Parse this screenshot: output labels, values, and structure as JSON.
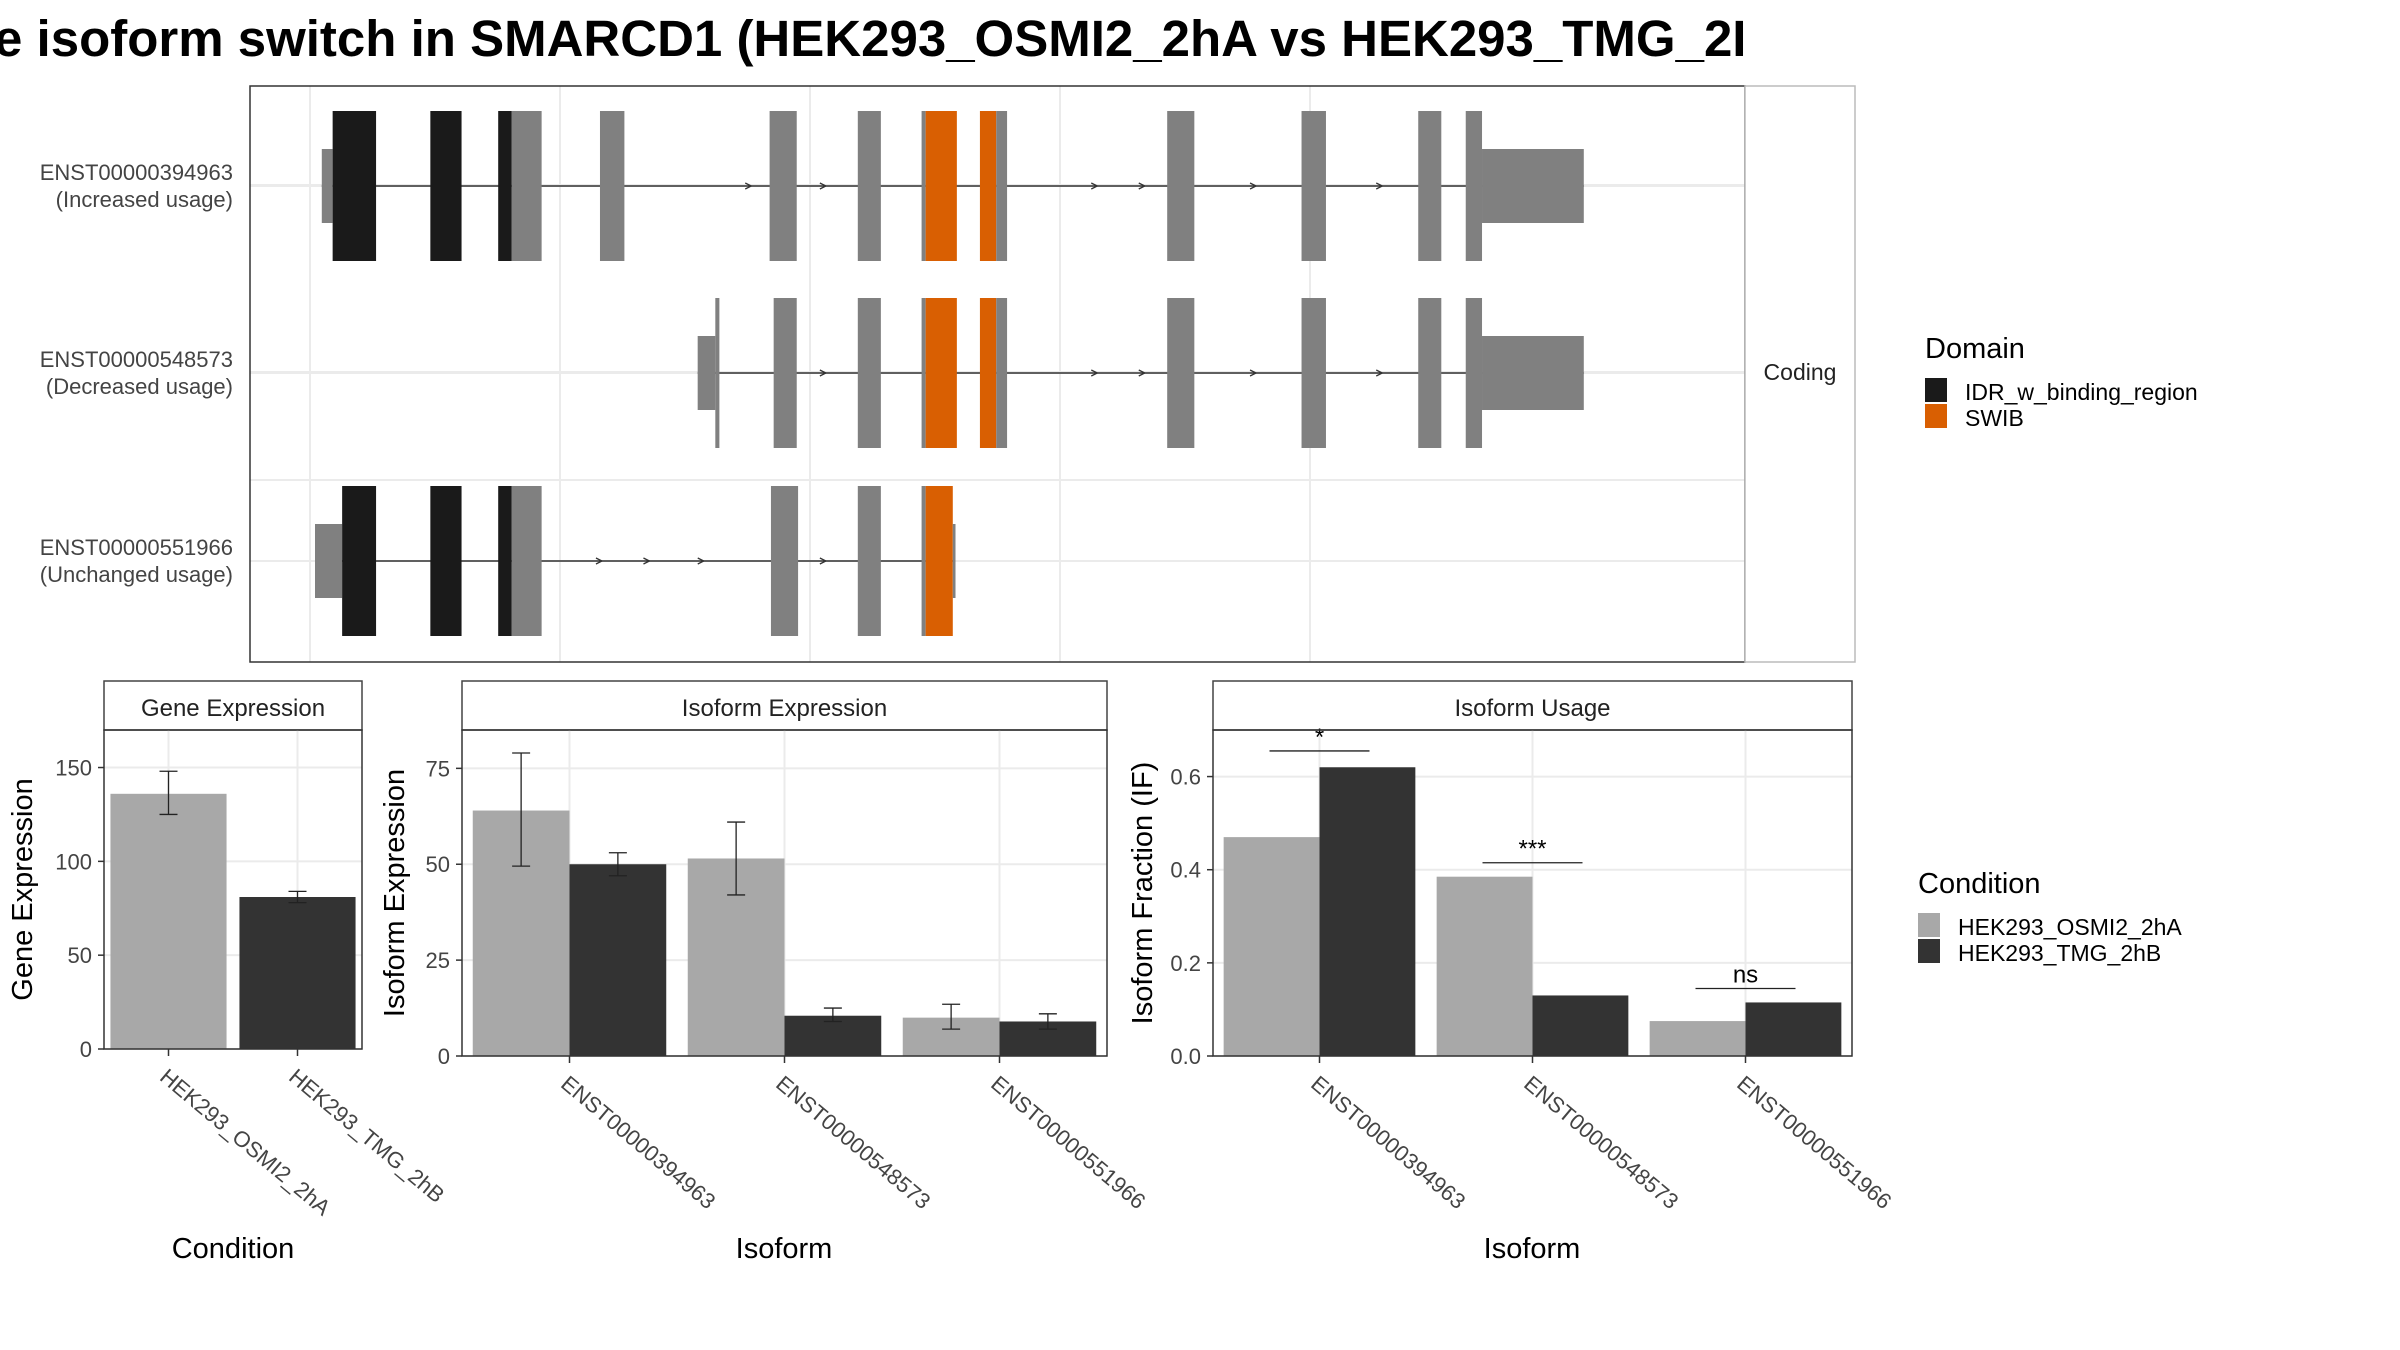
{
  "title": "e isoform switch in SMARCD1 (HEK293_OSMI2_2hA vs HEK293_TMG_2I",
  "colors": {
    "idr": "#1a1a1a",
    "swib": "#d95f02",
    "exon": "#808080",
    "cond1": "#a8a8a8",
    "cond2": "#333333"
  },
  "structure": {
    "strip_label": "Coding",
    "xlim": [
      0,
      1000
    ],
    "transcripts": [
      {
        "id": "ENST00000394963",
        "usage": "(Increased usage)",
        "exons": [
          [
            5,
            13,
            "utr"
          ],
          [
            13,
            45,
            "idr"
          ],
          [
            85,
            108,
            "idr"
          ],
          [
            135,
            145,
            "idr"
          ],
          [
            145,
            167,
            "cds"
          ],
          [
            210,
            228,
            "cds"
          ],
          [
            335,
            355,
            "cds"
          ],
          [
            400,
            417,
            "cds"
          ],
          [
            447,
            450,
            "cds"
          ],
          [
            450,
            473,
            "swib"
          ],
          [
            490,
            502,
            "swib"
          ],
          [
            502,
            510,
            "cds"
          ],
          [
            628,
            648,
            "cds"
          ],
          [
            727,
            745,
            "cds"
          ],
          [
            813,
            830,
            "cds"
          ],
          [
            848,
            860,
            "cds"
          ],
          [
            860,
            935,
            "utr"
          ]
        ],
        "arrows": [
          320,
          375,
          495,
          575,
          610,
          692,
          785,
          820
        ]
      },
      {
        "id": "ENST00000548573",
        "usage": "(Decreased usage)",
        "exons": [
          [
            282,
            295,
            "utr"
          ],
          [
            295,
            298,
            "cds"
          ],
          [
            338,
            355,
            "cds"
          ],
          [
            400,
            417,
            "cds"
          ],
          [
            447,
            450,
            "cds"
          ],
          [
            450,
            473,
            "swib"
          ],
          [
            490,
            502,
            "swib"
          ],
          [
            502,
            510,
            "cds"
          ],
          [
            628,
            648,
            "cds"
          ],
          [
            727,
            745,
            "cds"
          ],
          [
            813,
            830,
            "cds"
          ],
          [
            848,
            860,
            "cds"
          ],
          [
            860,
            935,
            "utr"
          ]
        ],
        "arrows": [
          375,
          495,
          575,
          610,
          692,
          785,
          820
        ]
      },
      {
        "id": "ENST00000551966",
        "usage": "(Unchanged usage)",
        "exons": [
          [
            0,
            20,
            "utr"
          ],
          [
            20,
            45,
            "idr"
          ],
          [
            85,
            108,
            "idr"
          ],
          [
            135,
            145,
            "idr"
          ],
          [
            145,
            167,
            "cds"
          ],
          [
            336,
            356,
            "cds"
          ],
          [
            400,
            417,
            "cds"
          ],
          [
            447,
            450,
            "cds"
          ],
          [
            450,
            470,
            "swib"
          ],
          [
            470,
            472,
            "utr"
          ]
        ],
        "arrows": [
          210,
          245,
          285,
          375
        ]
      }
    ]
  },
  "legend_domain": {
    "title": "Domain",
    "items": [
      {
        "label": "IDR_w_binding_region",
        "color": "#1a1a1a"
      },
      {
        "label": "SWIB",
        "color": "#d95f02"
      }
    ]
  },
  "legend_condition": {
    "title": "Condition",
    "items": [
      {
        "label": "HEK293_OSMI2_2hA",
        "color": "#a8a8a8"
      },
      {
        "label": "HEK293_TMG_2hB",
        "color": "#333333"
      }
    ]
  },
  "chart_data": [
    {
      "type": "bar",
      "title": "Gene Expression",
      "xlabel": "Condition",
      "ylabel": "Gene Expression",
      "ylim": [
        0,
        170
      ],
      "yticks": [
        0,
        50,
        100,
        150
      ],
      "categories": [
        "HEK293_OSMI2_2hA",
        "HEK293_TMG_2hB"
      ],
      "values": [
        136,
        81
      ],
      "errors": [
        [
          125,
          148
        ],
        [
          78,
          84
        ]
      ],
      "colors": [
        "#a8a8a8",
        "#333333"
      ]
    },
    {
      "type": "bar",
      "title": "Isoform Expression",
      "xlabel": "Isoform",
      "ylabel": "Isoform Expression",
      "ylim": [
        0,
        85
      ],
      "yticks": [
        0,
        25,
        50,
        75
      ],
      "categories": [
        "ENST00000394963",
        "ENST00000548573",
        "ENST00000551966"
      ],
      "series": [
        {
          "name": "HEK293_OSMI2_2hA",
          "values": [
            64,
            51.5,
            10
          ],
          "errors": [
            [
              49.5,
              79
            ],
            [
              42,
              61
            ],
            [
              7,
              13.5
            ]
          ]
        },
        {
          "name": "HEK293_TMG_2hB",
          "values": [
            50,
            10.5,
            9
          ],
          "errors": [
            [
              47,
              53
            ],
            [
              9,
              12.5
            ],
            [
              7,
              11
            ]
          ]
        }
      ]
    },
    {
      "type": "bar",
      "title": "Isoform Usage",
      "xlabel": "Isoform",
      "ylabel": "Isoform Fraction (IF)",
      "ylim": [
        0,
        0.7
      ],
      "yticks": [
        "0.0",
        "0.2",
        "0.4",
        "0.6"
      ],
      "categories": [
        "ENST00000394963",
        "ENST00000548573",
        "ENST00000551966"
      ],
      "series": [
        {
          "name": "HEK293_OSMI2_2hA",
          "values": [
            0.47,
            0.385,
            0.075
          ]
        },
        {
          "name": "HEK293_TMG_2hB",
          "values": [
            0.62,
            0.13,
            0.115
          ]
        }
      ],
      "significance": [
        "*",
        "***",
        "ns"
      ],
      "sig_y": [
        0.655,
        0.415,
        0.145
      ]
    }
  ]
}
